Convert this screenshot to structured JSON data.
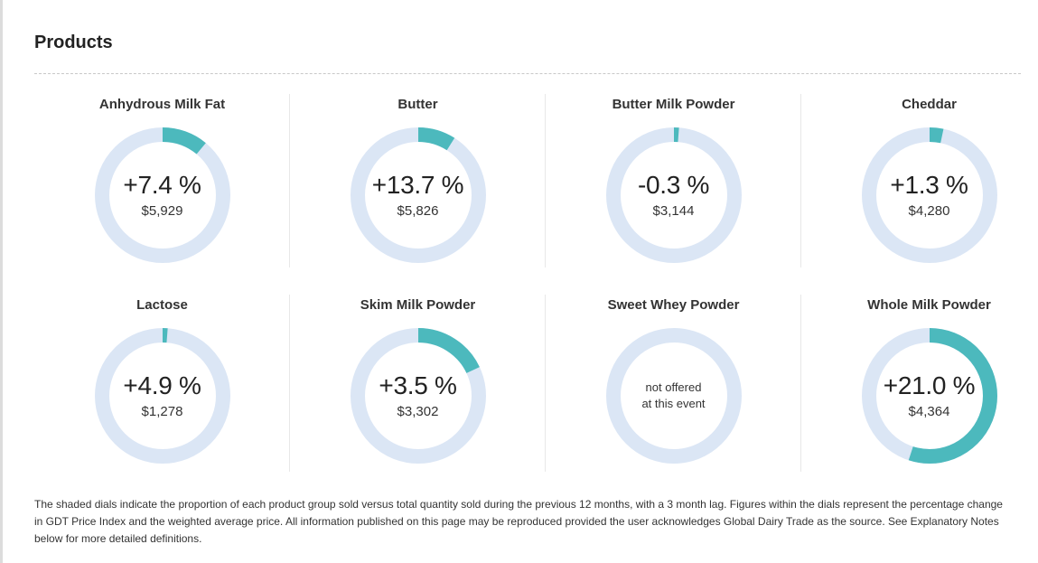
{
  "section": {
    "title": "Products"
  },
  "colors": {
    "track": "#dbe6f5",
    "fill": "#4cb9bd"
  },
  "products": [
    {
      "name": "Anhydrous Milk Fat",
      "change": "+7.4 %",
      "price": "$5,929",
      "share_fraction": 0.11
    },
    {
      "name": "Butter",
      "change": "+13.7 %",
      "price": "$5,826",
      "share_fraction": 0.09
    },
    {
      "name": "Butter Milk Powder",
      "change": "-0.3 %",
      "price": "$3,144",
      "share_fraction": 0.012
    },
    {
      "name": "Cheddar",
      "change": "+1.3 %",
      "price": "$4,280",
      "share_fraction": 0.033
    },
    {
      "name": "Lactose",
      "change": "+4.9 %",
      "price": "$1,278",
      "share_fraction": 0.012
    },
    {
      "name": "Skim Milk Powder",
      "change": "+3.5 %",
      "price": "$3,302",
      "share_fraction": 0.18
    },
    {
      "name": "Sweet Whey Powder",
      "note": "not offered\nat this event",
      "share_fraction": 0
    },
    {
      "name": "Whole Milk Powder",
      "change": "+21.0 %",
      "price": "$4,364",
      "share_fraction": 0.55
    }
  ],
  "footnote": "The shaded dials indicate the proportion of each product group sold versus total quantity sold during the previous 12 months, with a 3 month lag. Figures within the dials represent the percentage change in GDT Price Index and the weighted average price. All information published on this page may be reproduced provided the user acknowledges Global Dairy Trade as the source. See Explanatory Notes below for more detailed definitions."
}
